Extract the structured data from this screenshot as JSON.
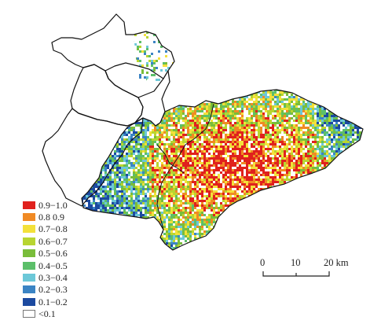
{
  "map": {
    "legend": {
      "classes": [
        {
          "label": "0.9−1.0",
          "color": "#e0211d"
        },
        {
          "label": "0.8  0.9",
          "color": "#f08a24"
        },
        {
          "label": "0.7−0.8",
          "color": "#f3e13a"
        },
        {
          "label": "0.6−0.7",
          "color": "#b8d531"
        },
        {
          "label": "0.5−0.6",
          "color": "#79bd3a"
        },
        {
          "label": "0.4−0.5",
          "color": "#5cbf6a"
        },
        {
          "label": "0.3−0.4",
          "color": "#6cc8d8"
        },
        {
          "label": "0.2−0.3",
          "color": "#3b84c4"
        },
        {
          "label": "0.1−0.2",
          "color": "#1c4aa0"
        },
        {
          "label": "<0.1",
          "color": "#ffffff"
        }
      ]
    },
    "scalebar": {
      "ticks": [
        "0",
        "10",
        "20 km"
      ]
    }
  }
}
